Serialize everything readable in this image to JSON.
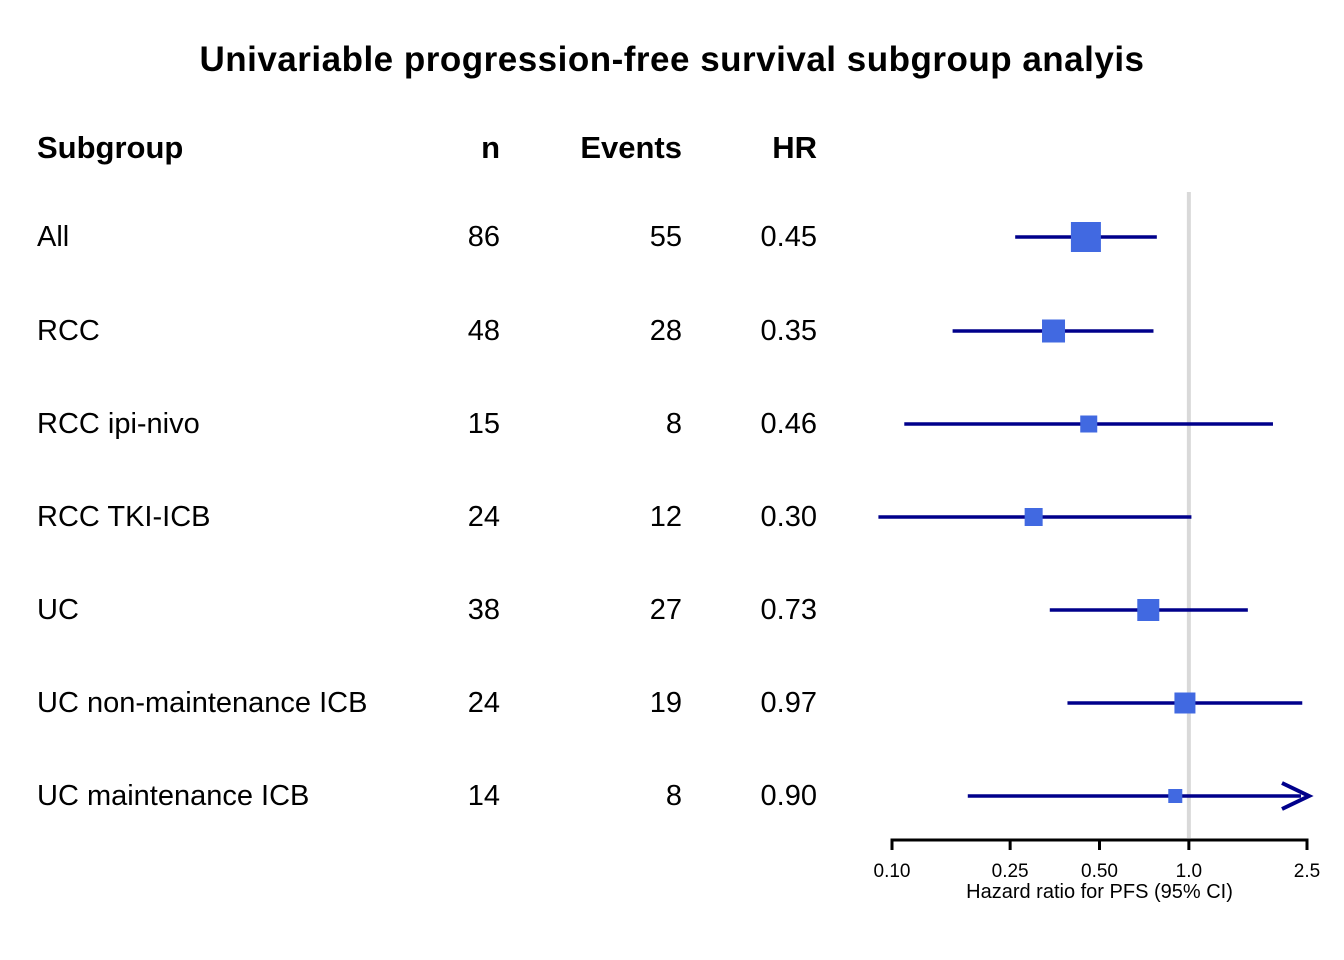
{
  "title": "Univariable progression-free survival subgroup analyis",
  "chart_data": {
    "type": "forest",
    "title": "Univariable progression-free survival subgroup analyis",
    "xlabel": "Hazard ratio for PFS (95% CI)",
    "x_scale": "log",
    "x_range": [
      0.1,
      2.5
    ],
    "x_ticks": [
      "0.10",
      "0.25",
      "0.50",
      "1.0",
      "2.5"
    ],
    "reference_line": 1.0,
    "grid": false,
    "columns": {
      "subgroup": "Subgroup",
      "n": "n",
      "events": "Events",
      "hr": "HR"
    },
    "series": [
      {
        "subgroup": "All",
        "n": 86,
        "events": 55,
        "hr": "0.45",
        "ci_low": 0.26,
        "ci_high": 0.78,
        "marker_size": 30,
        "arrow_high": false
      },
      {
        "subgroup": "RCC",
        "n": 48,
        "events": 28,
        "hr": "0.35",
        "ci_low": 0.16,
        "ci_high": 0.76,
        "marker_size": 23,
        "arrow_high": false
      },
      {
        "subgroup": "RCC ipi-nivo",
        "n": 15,
        "events": 8,
        "hr": "0.46",
        "ci_low": 0.11,
        "ci_high": 1.92,
        "marker_size": 17,
        "arrow_high": false
      },
      {
        "subgroup": "RCC TKI-ICB",
        "n": 24,
        "events": 12,
        "hr": "0.30",
        "ci_low": 0.09,
        "ci_high": 1.02,
        "marker_size": 18,
        "arrow_high": false
      },
      {
        "subgroup": "UC",
        "n": 38,
        "events": 27,
        "hr": "0.73",
        "ci_low": 0.34,
        "ci_high": 1.58,
        "marker_size": 22,
        "arrow_high": false
      },
      {
        "subgroup": "UC non-maintenance ICB",
        "n": 24,
        "events": 19,
        "hr": "0.97",
        "ci_low": 0.39,
        "ci_high": 2.41,
        "marker_size": 21,
        "arrow_high": false
      },
      {
        "subgroup": "UC maintenance ICB",
        "n": 14,
        "events": 8,
        "hr": "0.90",
        "ci_low": 0.18,
        "ci_high": 2.6,
        "marker_size": 14,
        "arrow_high": true
      }
    ],
    "colors": {
      "marker": "#4169E1",
      "ci_line": "#00008B",
      "reference_line": "#D9D9D9",
      "axis": "#000000",
      "text": "#000000"
    }
  }
}
